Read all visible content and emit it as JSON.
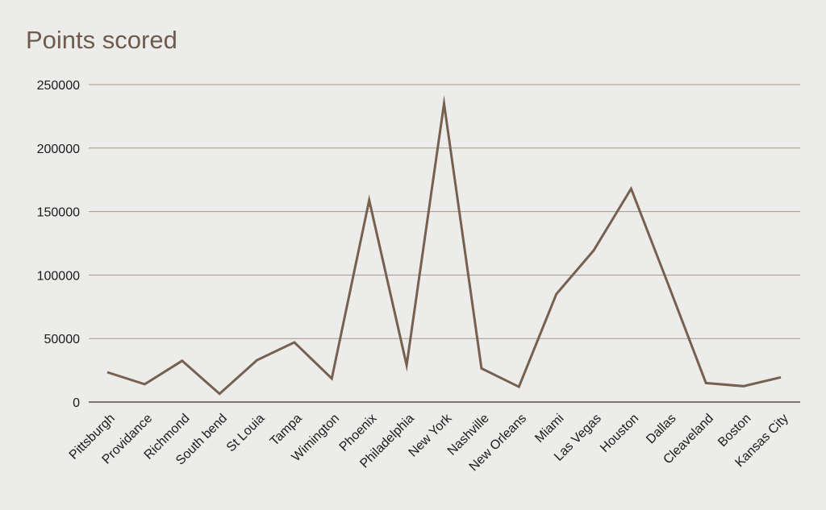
{
  "chart_data": {
    "type": "line",
    "title": "Points scored",
    "xlabel": "",
    "ylabel": "",
    "categories": [
      "Pittsburgh",
      "Providance",
      "Richmond",
      "South bend",
      "St Louia",
      "Tampa",
      "Wimington",
      "Phoenix",
      "Philadelphia",
      "New York",
      "Nashville",
      "New Orleans",
      "Miami",
      "Las Vegas",
      "Houston",
      "Dallas",
      "Cleaveland",
      "Boston",
      "Kansas City"
    ],
    "series": [
      {
        "values": [
          23500,
          14000,
          32500,
          6500,
          33000,
          47000,
          18500,
          159000,
          29000,
          235000,
          26500,
          12000,
          85000,
          119500,
          168000,
          92000,
          15000,
          12500,
          19500
        ]
      }
    ],
    "ylim": [
      0,
      250000
    ],
    "yticks": [
      "0",
      "50000",
      "100000",
      "150000",
      "200000",
      "250000"
    ],
    "grid": true,
    "legend": "none",
    "colors": {
      "line": "#76604f",
      "grid": "#a89586",
      "axis": "#3a2e27",
      "background": "#ececea",
      "title": "#6e5b4e"
    }
  }
}
